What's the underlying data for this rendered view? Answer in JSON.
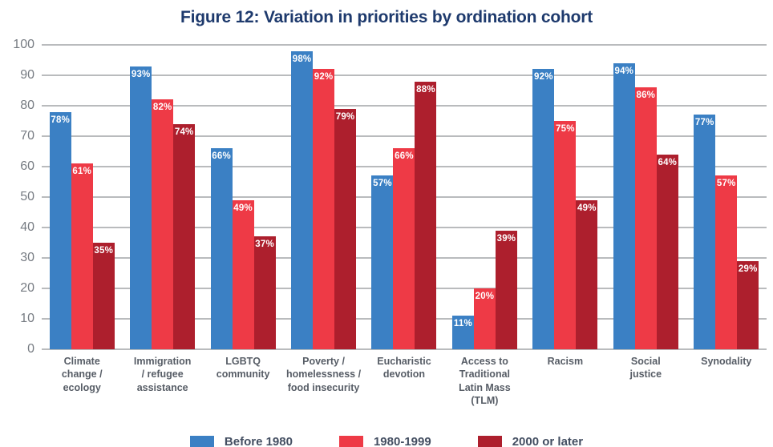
{
  "chart_data": {
    "type": "bar",
    "title": "Figure 12: Variation in priorities by ordination cohort",
    "categories": [
      "Climate\nchange /\necology",
      "Immigration\n/ refugee\nassistance",
      "LGBTQ\ncommunity",
      "Poverty /\nhomelessness /\nfood insecurity",
      "Eucharistic\ndevotion",
      "Access to\nTraditional\nLatin Mass\n(TLM)",
      "Racism",
      "Social\njustice",
      "Synodality"
    ],
    "series": [
      {
        "name": "Before 1980",
        "color": "#3b80c4",
        "values": [
          78,
          93,
          66,
          98,
          57,
          11,
          92,
          94,
          77
        ]
      },
      {
        "name": "1980-1999",
        "color": "#ee3a46",
        "values": [
          61,
          82,
          49,
          92,
          66,
          20,
          75,
          86,
          57
        ]
      },
      {
        "name": "2000 or later",
        "color": "#ad1f2d",
        "values": [
          35,
          74,
          37,
          79,
          88,
          39,
          49,
          64,
          29
        ]
      }
    ],
    "value_label_suffix": "%",
    "ylabel": "",
    "xlabel": "",
    "ylim": [
      0,
      100
    ],
    "yticks": [
      0,
      10,
      20,
      30,
      40,
      50,
      60,
      70,
      80,
      90,
      100
    ],
    "grid": true,
    "legend_position": "bottom"
  },
  "colors": {
    "title": "#1e3a6d",
    "category_label": "#575d66",
    "y_tick_label": "#767b82",
    "gridline": "#a8aaac",
    "bar_value_label": "#ffffff",
    "legend_label": "#434e61",
    "background": "#ffffff"
  }
}
